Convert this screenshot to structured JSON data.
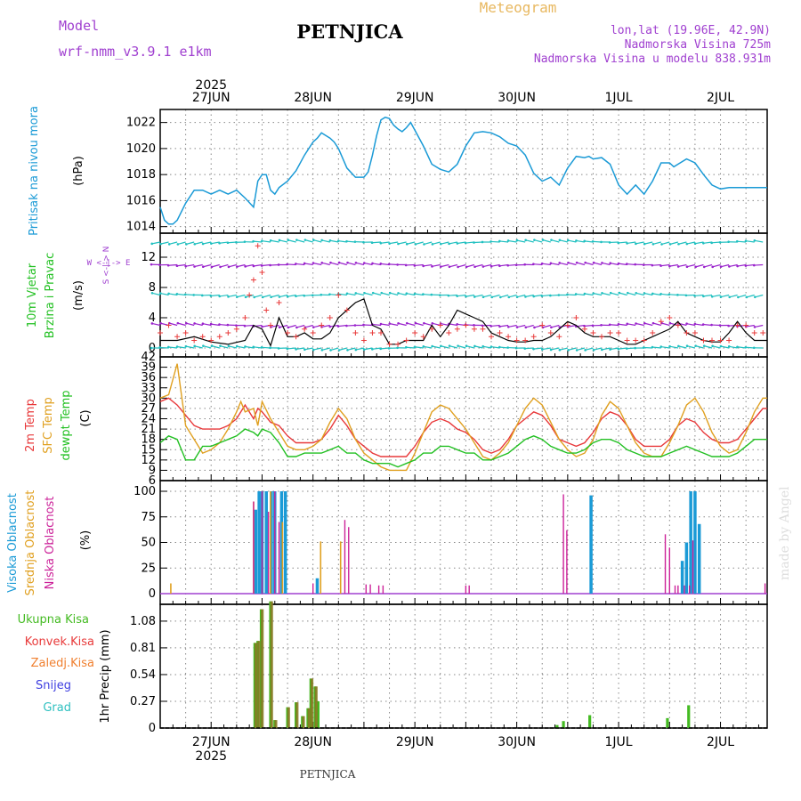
{
  "header": {
    "model_label": "Model",
    "model_name": "wrf-nmm_v3.9.1 e1km",
    "station": "PETNJICA",
    "meteogram_label": "Meteogram",
    "lonlat": "lon,lat (19.96E, 42.9N)",
    "elevation": "Nadmorska Visina 725m",
    "model_elevation": "Nadmorska Visina u modelu 838.931m",
    "footer_station": "PETNJICA",
    "watermark": "made by Angel"
  },
  "time_axis": {
    "top_year": "2025",
    "bottom_year": "2025",
    "day_labels": [
      "27JUN",
      "28JUN",
      "29JUN",
      "30JUN",
      "1JUL",
      "2JUL"
    ],
    "day_positions_h": [
      12,
      36,
      60,
      84,
      108,
      132
    ],
    "range_h": [
      0,
      143
    ]
  },
  "colors": {
    "pressure": "#1a9ad6",
    "t2m": "#e8383a",
    "sfc": "#e0a020",
    "dewpt": "#22c022",
    "cloud_high": "#1a9ad6",
    "cloud_mid": "#e0a020",
    "cloud_low": "#cc2299",
    "precip_total": "#44bb22",
    "precip_conv": "#e83a3a",
    "precip_frz": "#f08030",
    "snow": "#4040e0",
    "hail": "#30c0c0",
    "wind_arrow": "#20c0c0",
    "wind_arrow_alt": "#9922cc",
    "wind_speed": "#000000",
    "wind_gust": "#e83a3a"
  },
  "panels": {
    "pressure": {
      "label1": "Pritisak na nivou mora",
      "unit": "(hPa)",
      "ticks": [
        "1022",
        "1020",
        "1018",
        "1016",
        "1014"
      ]
    },
    "wind": {
      "label1": "10m Vjetar",
      "label2": "Brzina i Pravac",
      "unit": "(m/s)",
      "ticks": [
        "12",
        "8",
        "4",
        "0"
      ],
      "compass": "W <-|-> E",
      "compass_v": "S <-|-> N"
    },
    "temp": {
      "label1": "2m Temp",
      "label2": "SFC Temp",
      "label3": "dewpt Temp",
      "unit": "(C)",
      "ticks": [
        "42",
        "39",
        "36",
        "33",
        "30",
        "27",
        "24",
        "21",
        "18",
        "15",
        "12",
        "9",
        "6"
      ]
    },
    "cloud": {
      "label1": "Visoka Oblacnost",
      "label2": "Srednja Oblacnost",
      "label3": "Niska Oblacnost",
      "unit": "(%)",
      "ticks": [
        "100",
        "75",
        "50",
        "25",
        "0"
      ]
    },
    "precip": {
      "label1": "Ukupna Kisa",
      "label2": "Konvek.Kisa",
      "label3": "Zaledj.Kisa",
      "label4": "Snijeg",
      "label5": "Grad",
      "unit": "1hr Precip (mm)",
      "ticks": [
        "1.08",
        "0.81",
        "0.54",
        "0.27",
        "0"
      ]
    }
  },
  "chart_data": [
    {
      "type": "line",
      "name": "pressure",
      "ylim": [
        1013.5,
        1023
      ],
      "x": [
        0,
        1,
        2,
        3,
        4,
        6,
        8,
        10,
        12,
        14,
        16,
        18,
        20,
        22,
        23,
        24,
        25,
        26,
        27,
        28,
        30,
        32,
        34,
        36,
        37,
        38,
        39,
        40,
        41,
        42,
        44,
        46,
        48,
        49,
        50,
        51,
        52,
        53,
        54,
        55,
        56,
        57,
        58,
        59,
        60,
        62,
        64,
        66,
        68,
        70,
        72,
        74,
        76,
        78,
        80,
        82,
        84,
        86,
        88,
        90,
        92,
        94,
        96,
        98,
        100,
        101,
        102,
        104,
        106,
        108,
        110,
        112,
        114,
        116,
        118,
        120,
        121,
        122,
        124,
        126,
        128,
        130,
        132,
        134,
        136,
        138,
        140,
        142,
        143
      ],
      "values": [
        1015.5,
        1014.5,
        1014.2,
        1014.2,
        1014.5,
        1015.8,
        1016.8,
        1016.8,
        1016.5,
        1016.8,
        1016.5,
        1016.8,
        1016.2,
        1015.5,
        1017.5,
        1018,
        1018,
        1016.8,
        1016.5,
        1017,
        1017.5,
        1018.3,
        1019.5,
        1020.5,
        1020.8,
        1021.2,
        1021,
        1020.8,
        1020.5,
        1020,
        1018.5,
        1017.8,
        1017.8,
        1018.2,
        1019.5,
        1021,
        1022.2,
        1022.4,
        1022.3,
        1021.8,
        1021.5,
        1021.3,
        1021.6,
        1022,
        1021.4,
        1020.2,
        1018.8,
        1018.4,
        1018.2,
        1018.8,
        1020.2,
        1021.2,
        1021.3,
        1021.2,
        1020.9,
        1020.4,
        1020.2,
        1019.5,
        1018.1,
        1017.5,
        1017.8,
        1017.2,
        1018.5,
        1019.4,
        1019.3,
        1019.4,
        1019.2,
        1019.3,
        1018.8,
        1017.2,
        1016.5,
        1017.2,
        1016.5,
        1017.5,
        1018.9,
        1018.9,
        1018.6,
        1018.8,
        1019.2,
        1018.9,
        1018,
        1017.2,
        1016.9,
        1017,
        1017,
        1017,
        1017,
        1017,
        1017
      ]
    },
    {
      "type": "line",
      "name": "wind_speed",
      "ylim": [
        0,
        14
      ],
      "x": [
        0,
        4,
        8,
        12,
        16,
        20,
        22,
        24,
        26,
        28,
        30,
        32,
        34,
        36,
        38,
        40,
        42,
        44,
        46,
        48,
        50,
        52,
        54,
        56,
        58,
        60,
        62,
        64,
        66,
        68,
        70,
        72,
        74,
        76,
        78,
        80,
        82,
        84,
        86,
        88,
        90,
        92,
        94,
        96,
        98,
        100,
        102,
        104,
        106,
        108,
        110,
        112,
        114,
        116,
        118,
        120,
        122,
        124,
        126,
        128,
        130,
        132,
        134,
        136,
        138,
        140,
        142,
        143
      ],
      "values": [
        1,
        1,
        1.5,
        0.8,
        0.5,
        1,
        3,
        2.5,
        0.3,
        4,
        1.5,
        1.5,
        2,
        1.2,
        1.2,
        2,
        4,
        5,
        6,
        6.5,
        3,
        2.5,
        0.5,
        0.5,
        1,
        1,
        1,
        3,
        1.5,
        3,
        5,
        4.5,
        4,
        3.5,
        2,
        1.5,
        1,
        0.8,
        0.8,
        1,
        1,
        1.5,
        2.5,
        3.5,
        3,
        2,
        1.5,
        1.5,
        1.5,
        1,
        0.5,
        0.5,
        1,
        1.5,
        2,
        2.5,
        3.5,
        2,
        1.5,
        1,
        0.8,
        0.8,
        2,
        3.5,
        2,
        1,
        1,
        1
      ]
    },
    {
      "type": "scatter",
      "name": "wind_gust",
      "ylim": [
        0,
        14
      ],
      "x": [
        0,
        2,
        4,
        6,
        8,
        10,
        12,
        14,
        16,
        18,
        20,
        21,
        22,
        23,
        24,
        25,
        26,
        28,
        30,
        32,
        34,
        36,
        38,
        40,
        42,
        44,
        46,
        48,
        50,
        52,
        54,
        56,
        58,
        60,
        62,
        64,
        66,
        68,
        70,
        72,
        74,
        76,
        78,
        80,
        82,
        84,
        86,
        88,
        90,
        92,
        94,
        96,
        98,
        100,
        102,
        104,
        106,
        108,
        110,
        112,
        114,
        116,
        118,
        120,
        122,
        124,
        126,
        128,
        130,
        132,
        134,
        136,
        138,
        140,
        142
      ],
      "values": [
        2,
        3,
        1.5,
        2,
        1,
        1.5,
        1,
        1.5,
        2,
        2.5,
        4,
        7,
        9,
        13.5,
        10,
        5,
        3,
        6,
        2,
        1.5,
        2.5,
        2,
        3,
        4,
        7,
        5,
        2,
        1,
        2,
        2,
        0.5,
        0.5,
        1,
        2,
        1.5,
        2.5,
        3,
        2,
        2.5,
        3,
        2.5,
        2.5,
        1.5,
        2,
        1.5,
        1,
        1,
        1.5,
        3,
        2,
        1.5,
        3,
        4,
        2.5,
        2,
        1.5,
        2,
        2,
        1,
        1,
        1,
        2,
        3.5,
        4,
        3,
        2,
        2,
        1,
        1,
        1,
        1,
        3,
        3,
        2,
        2
      ]
    },
    {
      "type": "line",
      "name": "temperatures",
      "ylim": [
        6,
        42
      ],
      "x": [
        0,
        2,
        4,
        6,
        8,
        10,
        12,
        14,
        16,
        18,
        19,
        20,
        22,
        23,
        24,
        26,
        28,
        30,
        32,
        34,
        36,
        38,
        40,
        42,
        44,
        46,
        48,
        50,
        52,
        54,
        56,
        58,
        60,
        62,
        64,
        66,
        68,
        70,
        72,
        74,
        76,
        78,
        80,
        82,
        84,
        86,
        88,
        90,
        92,
        94,
        96,
        98,
        100,
        102,
        104,
        106,
        108,
        110,
        112,
        114,
        116,
        118,
        120,
        122,
        124,
        126,
        128,
        130,
        132,
        134,
        136,
        138,
        140,
        142,
        143
      ],
      "series": [
        {
          "name": "2m Temp",
          "values": [
            29,
            30,
            28,
            25,
            22,
            21,
            21,
            21,
            22,
            24,
            26,
            28,
            24,
            27,
            26,
            23,
            22,
            19,
            17,
            17,
            17,
            18,
            21,
            25,
            22,
            18,
            16,
            14,
            13,
            13,
            13,
            13,
            16,
            20,
            23,
            24,
            23,
            21,
            20,
            18,
            15,
            14,
            15,
            18,
            22,
            24,
            26,
            25,
            22,
            18,
            17,
            16,
            17,
            20,
            24,
            26,
            25,
            22,
            18,
            16,
            16,
            16,
            18,
            22,
            24,
            23,
            20,
            18,
            17,
            17,
            18,
            21,
            24,
            27,
            27
          ]
        },
        {
          "name": "SFC Temp",
          "values": [
            30,
            31,
            40,
            22,
            18,
            14,
            15,
            17,
            21,
            26,
            29,
            26,
            27,
            22,
            29,
            24,
            20,
            16,
            15,
            15,
            16,
            18,
            23,
            27,
            24,
            18,
            14,
            12,
            10,
            9,
            9,
            9,
            14,
            20,
            26,
            28,
            27,
            24,
            21,
            17,
            13,
            12,
            14,
            17,
            22,
            27,
            30,
            28,
            23,
            18,
            15,
            13,
            14,
            18,
            25,
            29,
            27,
            22,
            17,
            14,
            13,
            13,
            17,
            22,
            28,
            30,
            26,
            20,
            16,
            14,
            15,
            20,
            26,
            30,
            30
          ]
        },
        {
          "name": "dewpt Temp",
          "values": [
            17,
            19,
            18,
            12,
            12,
            16,
            16,
            17,
            18,
            19,
            20,
            21,
            20,
            19,
            21,
            20,
            17,
            13,
            13,
            14,
            14,
            14,
            15,
            16,
            14,
            14,
            12,
            11,
            11,
            11,
            10,
            11,
            12,
            14,
            14,
            16,
            16,
            15,
            14,
            14,
            12,
            12,
            13,
            14,
            16,
            18,
            19,
            18,
            16,
            15,
            14,
            14,
            15,
            17,
            18,
            18,
            17,
            15,
            14,
            13,
            13,
            13,
            14,
            15,
            16,
            15,
            14,
            13,
            13,
            13,
            14,
            16,
            18,
            18,
            18
          ]
        }
      ]
    },
    {
      "type": "bar",
      "name": "cloud_cover",
      "ylim": [
        0,
        100
      ],
      "series": [
        {
          "name": "Visoka Oblacnost",
          "x": [
            22.5,
            23.3,
            24,
            25,
            26.2,
            27,
            28.6,
            29.5,
            37,
            45,
            93.5,
            101.5,
            119.5,
            123,
            124,
            125,
            126,
            127
          ],
          "values": [
            82,
            100,
            100,
            100,
            100,
            100,
            100,
            100,
            15,
            0,
            0,
            96,
            0,
            32,
            50,
            100,
            100,
            68
          ]
        },
        {
          "name": "Srednja Oblacnost",
          "x": [
            2.5,
            22,
            26,
            28.8,
            37.8,
            42.5
          ],
          "values": [
            10,
            90,
            100,
            70,
            51,
            51
          ]
        },
        {
          "name": "Niska Oblacnost",
          "x": [
            22,
            24,
            25.5,
            27,
            28,
            36,
            43.5,
            44.4,
            48.5,
            49.5,
            51.5,
            52.5,
            72,
            72.8,
            95,
            95.8,
            119,
            120,
            121.3,
            122,
            123.5,
            124.7,
            125.5,
            142.5
          ],
          "values": [
            90,
            100,
            80,
            100,
            70,
            10,
            72,
            65,
            9,
            9,
            8,
            8,
            8,
            8,
            97,
            62,
            58,
            45,
            8,
            8,
            8,
            8,
            52,
            10
          ]
        }
      ]
    },
    {
      "type": "bar",
      "name": "precipitation",
      "ylim": [
        0,
        1.25
      ],
      "series": [
        {
          "name": "Ukupna Kisa",
          "x": [
            22.3,
            23,
            23.8,
            26,
            27,
            30,
            32,
            33.5,
            34.8,
            35.5,
            36.5,
            37.2,
            38,
            93.5,
            95,
            101.2,
            119.5,
            124.5
          ],
          "values": [
            0.86,
            0.88,
            1.2,
            1.28,
            0.08,
            0.21,
            0.26,
            0.12,
            0.2,
            0.5,
            0.42,
            0.27,
            0,
            0.03,
            0.07,
            0.13,
            0.1,
            0.23
          ]
        },
        {
          "name": "Konvek.Kisa",
          "x": [
            22.3,
            23,
            23.8,
            26,
            27,
            30,
            32,
            33.5,
            34.8,
            35.5,
            36.5
          ],
          "values": [
            0.86,
            0.88,
            1.2,
            1.28,
            0.08,
            0.21,
            0.26,
            0.12,
            0.2,
            0.5,
            0.42
          ]
        }
      ]
    }
  ]
}
